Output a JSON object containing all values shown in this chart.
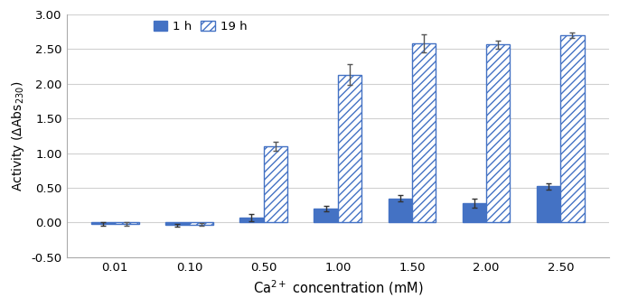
{
  "categories": [
    "0.01",
    "0.10",
    "0.50",
    "1.00",
    "1.50",
    "2.00",
    "2.50"
  ],
  "values_1h": [
    -0.02,
    -0.04,
    0.07,
    0.2,
    0.35,
    0.28,
    0.52
  ],
  "values_19h": [
    -0.02,
    -0.03,
    1.1,
    2.13,
    2.58,
    2.57,
    2.7
  ],
  "err_1h": [
    0.03,
    0.02,
    0.05,
    0.04,
    0.04,
    0.06,
    0.05
  ],
  "err_19h": [
    0.03,
    0.02,
    0.07,
    0.15,
    0.13,
    0.06,
    0.04
  ],
  "color_1h": "#4472c4",
  "color_19h_face": "#ffffff",
  "color_19h_edge": "#4472c4",
  "xlabel": "Ca$^{2+}$ concentration (mM)",
  "ylabel": "Activity (ΔAbs$_{230}$)",
  "ylim": [
    -0.5,
    3.0
  ],
  "yticks": [
    -0.5,
    0.0,
    0.5,
    1.0,
    1.5,
    2.0,
    2.5,
    3.0
  ],
  "legend_1h": "1 h",
  "legend_19h": "19 h",
  "bar_width": 0.32,
  "hatch_pattern": "////"
}
